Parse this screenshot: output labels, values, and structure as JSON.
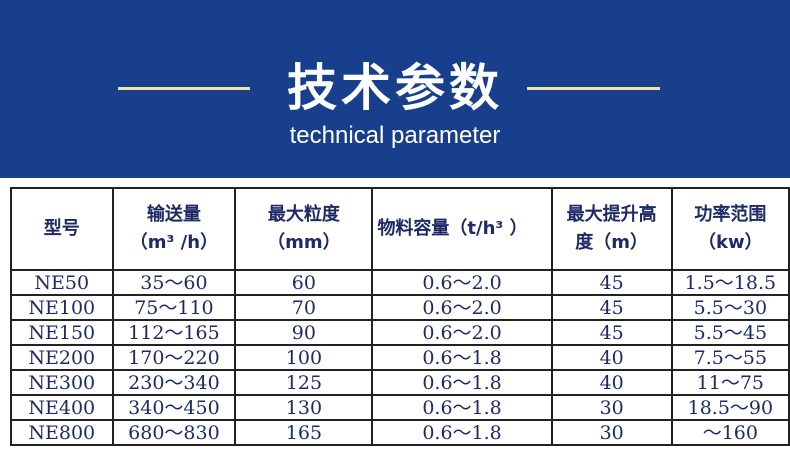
{
  "banner": {
    "title": "技术参数",
    "subtitle": "technical parameter",
    "bg": "#173f8c",
    "accent": "#f1e2a6"
  },
  "table": {
    "headers": [
      [
        "型号",
        ""
      ],
      [
        "输送量",
        "（m³ /h）"
      ],
      [
        "最大粒度",
        "（mm）"
      ],
      [
        "物料容量（t/h³ ）",
        ""
      ],
      [
        "最大提升高",
        "度（m）"
      ],
      [
        "功率范围",
        "（kw）"
      ]
    ],
    "rows": [
      [
        "NE50",
        "35～60",
        "60",
        "0.6～2.0",
        "45",
        "1.5～18.5"
      ],
      [
        "NE100",
        "75～110",
        "70",
        "0.6～2.0",
        "45",
        "5.5～30"
      ],
      [
        "NE150",
        "112～165",
        "90",
        "0.6～2.0",
        "45",
        "5.5～45"
      ],
      [
        "NE200",
        "170～220",
        "100",
        "0.6～1.8",
        "40",
        "7.5～55"
      ],
      [
        "NE300",
        "230～340",
        "125",
        "0.6～1.8",
        "40",
        "11～75"
      ],
      [
        "NE400",
        "340～450",
        "130",
        "0.6～1.8",
        "30",
        "18.5～90"
      ],
      [
        "NE800",
        "680～830",
        "165",
        "0.6～1.8",
        "30",
        "～160"
      ]
    ]
  }
}
